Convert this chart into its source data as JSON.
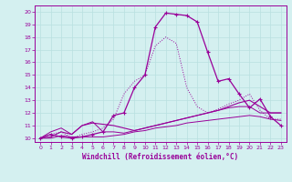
{
  "xlabel": "Windchill (Refroidissement éolien,°C)",
  "background_color": "#d4f0f0",
  "line_color": "#990099",
  "grid_color": "#b8e0e0",
  "xlim": [
    -0.5,
    23.5
  ],
  "ylim": [
    9.7,
    20.5
  ],
  "xticks": [
    0,
    1,
    2,
    3,
    4,
    5,
    6,
    7,
    8,
    9,
    10,
    11,
    12,
    13,
    14,
    15,
    16,
    17,
    18,
    19,
    20,
    21,
    22,
    23
  ],
  "yticks": [
    10,
    11,
    12,
    13,
    14,
    15,
    16,
    17,
    18,
    19,
    20
  ],
  "line1_x": [
    0,
    1,
    2,
    3,
    4,
    5,
    6,
    7,
    8,
    9,
    10,
    11,
    12,
    13,
    14,
    15,
    16,
    17,
    18,
    19,
    20,
    21,
    22,
    23
  ],
  "line1_y": [
    10.0,
    10.3,
    10.1,
    10.0,
    10.1,
    10.3,
    10.5,
    11.8,
    12.0,
    14.0,
    15.0,
    18.8,
    19.9,
    19.8,
    19.7,
    19.2,
    16.8,
    14.5,
    14.7,
    13.5,
    12.4,
    13.1,
    11.7,
    11.0
  ],
  "line1_marker_x": [
    0,
    1,
    2,
    3,
    4,
    5,
    6,
    7,
    8,
    9,
    10,
    11,
    12,
    13,
    14,
    15,
    16,
    17,
    18,
    19,
    20,
    21,
    22,
    23
  ],
  "line1_marker_y": [
    10.0,
    10.3,
    10.1,
    10.0,
    10.1,
    10.3,
    10.5,
    11.8,
    12.0,
    14.0,
    15.0,
    18.8,
    19.9,
    19.8,
    19.7,
    19.2,
    16.8,
    14.5,
    14.7,
    13.5,
    12.4,
    13.1,
    11.7,
    11.0
  ],
  "line2_x": [
    0,
    1,
    2,
    3,
    4,
    5,
    6,
    7,
    8,
    9,
    10,
    11,
    12,
    13,
    14,
    15,
    16,
    17,
    18,
    19,
    20,
    21,
    22,
    23
  ],
  "line2_y": [
    10.0,
    10.3,
    10.5,
    10.0,
    10.3,
    10.5,
    10.8,
    11.5,
    13.5,
    14.5,
    15.0,
    17.3,
    18.0,
    17.5,
    14.0,
    12.5,
    12.0,
    12.3,
    12.7,
    13.0,
    13.5,
    12.2,
    11.5,
    11.5
  ],
  "line3_x": [
    0,
    1,
    2,
    3,
    4,
    5,
    6,
    7,
    8,
    9,
    10,
    11,
    12,
    13,
    14,
    15,
    16,
    17,
    18,
    19,
    20,
    21,
    22,
    23
  ],
  "line3_y": [
    10.0,
    10.1,
    10.5,
    10.3,
    11.0,
    11.2,
    11.1,
    11.0,
    10.8,
    10.6,
    10.8,
    11.0,
    11.2,
    11.4,
    11.6,
    11.8,
    12.0,
    12.2,
    12.5,
    12.8,
    13.0,
    12.5,
    12.0,
    12.0
  ],
  "line4_x": [
    0,
    1,
    2,
    3,
    4,
    5,
    6,
    7,
    8,
    9,
    10,
    11,
    12,
    13,
    14,
    15,
    16,
    17,
    18,
    19,
    20,
    21,
    22,
    23
  ],
  "line4_y": [
    10.0,
    10.0,
    10.2,
    10.1,
    10.1,
    10.1,
    10.1,
    10.2,
    10.3,
    10.5,
    10.6,
    10.8,
    10.9,
    11.0,
    11.2,
    11.3,
    11.4,
    11.5,
    11.6,
    11.7,
    11.8,
    11.7,
    11.5,
    11.4
  ],
  "line5_x": [
    0,
    1,
    2,
    3,
    4,
    5,
    6,
    7,
    8,
    9,
    10,
    11,
    12,
    13,
    14,
    15,
    16,
    17,
    18,
    19,
    20,
    21,
    22,
    23
  ],
  "line5_y": [
    10.0,
    10.5,
    10.8,
    10.3,
    11.0,
    11.3,
    10.5,
    10.5,
    10.4,
    10.6,
    10.8,
    11.0,
    11.2,
    11.4,
    11.6,
    11.8,
    12.0,
    12.2,
    12.4,
    12.5,
    12.5,
    12.0,
    12.0,
    12.0
  ]
}
